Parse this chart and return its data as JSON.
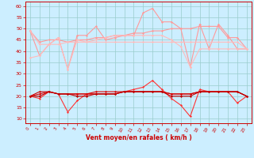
{
  "xlabel": "Vent moyen/en rafales ( km/h )",
  "xlim": [
    -0.5,
    23.5
  ],
  "ylim": [
    8,
    62
  ],
  "yticks": [
    10,
    15,
    20,
    25,
    30,
    35,
    40,
    45,
    50,
    55,
    60
  ],
  "xticks": [
    0,
    1,
    2,
    3,
    4,
    5,
    6,
    7,
    8,
    9,
    10,
    11,
    12,
    13,
    14,
    15,
    16,
    17,
    18,
    19,
    20,
    21,
    22,
    23
  ],
  "bg_color": "#cceeff",
  "grid_color": "#99cccc",
  "series": [
    {
      "x": [
        0,
        1,
        2,
        3,
        4,
        5,
        6,
        7,
        8,
        9,
        10,
        11,
        12,
        13,
        14,
        15,
        16,
        17,
        18,
        19,
        20,
        21,
        22,
        23
      ],
      "y": [
        49,
        38,
        43,
        46,
        32,
        47,
        47,
        51,
        45,
        46,
        47,
        47,
        57,
        59,
        53,
        53,
        50,
        33,
        52,
        41,
        52,
        47,
        41,
        41
      ],
      "color": "#ff9999",
      "lw": 0.8,
      "marker": "D",
      "ms": 1.5
    },
    {
      "x": [
        0,
        1,
        2,
        3,
        4,
        5,
        6,
        7,
        8,
        9,
        10,
        11,
        12,
        13,
        14,
        15,
        16,
        17,
        18,
        19,
        20,
        21,
        22,
        23
      ],
      "y": [
        49,
        44,
        45,
        45,
        44,
        45,
        45,
        46,
        46,
        47,
        47,
        48,
        48,
        49,
        49,
        50,
        50,
        50,
        51,
        51,
        51,
        46,
        46,
        41
      ],
      "color": "#ff9999",
      "lw": 0.8,
      "marker": "D",
      "ms": 1.5
    },
    {
      "x": [
        0,
        1,
        2,
        3,
        4,
        5,
        6,
        7,
        8,
        9,
        10,
        11,
        12,
        13,
        14,
        15,
        16,
        17,
        18,
        19,
        20,
        21,
        22,
        23
      ],
      "y": [
        49,
        43,
        43,
        43,
        44,
        44,
        44,
        44,
        44,
        44,
        44,
        44,
        44,
        44,
        44,
        44,
        44,
        44,
        44,
        44,
        44,
        44,
        44,
        41
      ],
      "color": "#ffbbbb",
      "lw": 0.8,
      "marker": "D",
      "ms": 1.5
    },
    {
      "x": [
        0,
        1,
        2,
        3,
        4,
        5,
        6,
        7,
        8,
        9,
        10,
        11,
        12,
        13,
        14,
        15,
        16,
        17,
        18,
        19,
        20,
        21,
        22,
        23
      ],
      "y": [
        37,
        38,
        43,
        46,
        32,
        45,
        44,
        45,
        46,
        47,
        47,
        47,
        47,
        47,
        47,
        45,
        42,
        33,
        41,
        41,
        41,
        41,
        41,
        41
      ],
      "color": "#ffbbbb",
      "lw": 0.8,
      "marker": "D",
      "ms": 1.5
    },
    {
      "x": [
        0,
        1,
        2,
        3,
        4,
        5,
        6,
        7,
        8,
        9,
        10,
        11,
        12,
        13,
        14,
        15,
        16,
        17,
        18,
        19,
        20,
        21,
        22,
        23
      ],
      "y": [
        20,
        19,
        22,
        21,
        13,
        18,
        21,
        21,
        21,
        21,
        22,
        23,
        24,
        27,
        23,
        19,
        16,
        11,
        23,
        22,
        22,
        22,
        17,
        20
      ],
      "color": "#ff3333",
      "lw": 0.8,
      "marker": "D",
      "ms": 1.5
    },
    {
      "x": [
        0,
        1,
        2,
        3,
        4,
        5,
        6,
        7,
        8,
        9,
        10,
        11,
        12,
        13,
        14,
        15,
        16,
        17,
        18,
        19,
        20,
        21,
        22,
        23
      ],
      "y": [
        20,
        22,
        22,
        21,
        21,
        21,
        21,
        21,
        21,
        21,
        22,
        22,
        22,
        22,
        22,
        21,
        21,
        21,
        22,
        22,
        22,
        22,
        22,
        20
      ],
      "color": "#cc0000",
      "lw": 0.8,
      "marker": "D",
      "ms": 1.5
    },
    {
      "x": [
        0,
        1,
        2,
        3,
        4,
        5,
        6,
        7,
        8,
        9,
        10,
        11,
        12,
        13,
        14,
        15,
        16,
        17,
        18,
        19,
        20,
        21,
        22,
        23
      ],
      "y": [
        20,
        21,
        22,
        21,
        21,
        21,
        21,
        22,
        22,
        22,
        22,
        22,
        22,
        22,
        22,
        21,
        21,
        21,
        22,
        22,
        22,
        22,
        22,
        20
      ],
      "color": "#dd0000",
      "lw": 0.8,
      "marker": "D",
      "ms": 1.5
    },
    {
      "x": [
        0,
        1,
        2,
        3,
        4,
        5,
        6,
        7,
        8,
        9,
        10,
        11,
        12,
        13,
        14,
        15,
        16,
        17,
        18,
        19,
        20,
        21,
        22,
        23
      ],
      "y": [
        20,
        20,
        22,
        21,
        21,
        20,
        20,
        21,
        21,
        21,
        22,
        22,
        22,
        22,
        22,
        20,
        20,
        20,
        22,
        22,
        22,
        22,
        22,
        20
      ],
      "color": "#bb0000",
      "lw": 0.8,
      "marker": "D",
      "ms": 1.5
    }
  ]
}
